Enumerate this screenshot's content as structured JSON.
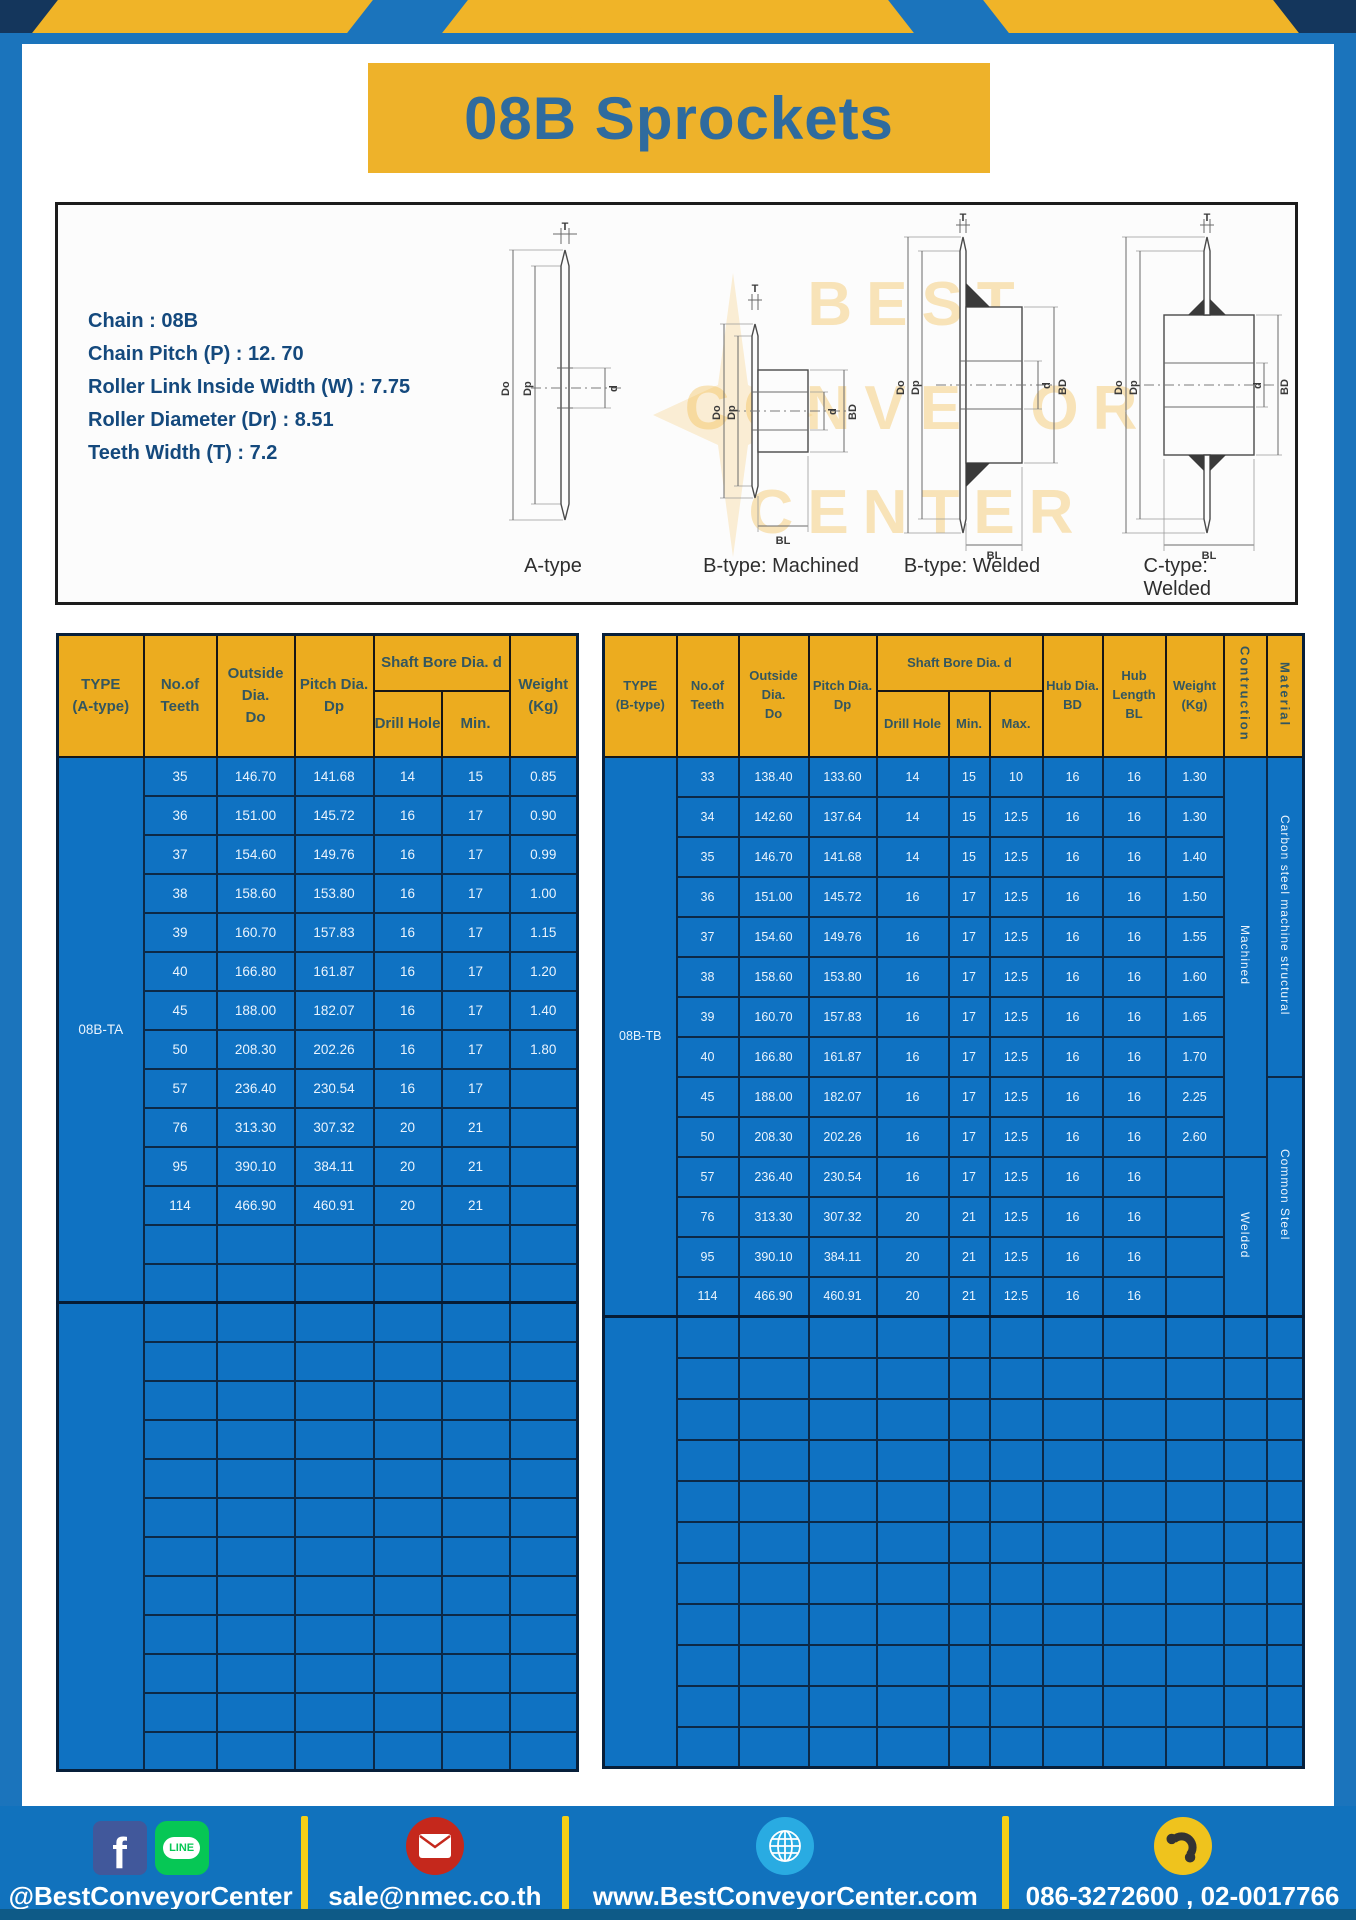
{
  "title": "08B Sprockets",
  "specs": [
    "Chain  : 08B",
    "Chain Pitch (P)  :  12. 70",
    "Roller Link Inside Width (W)  :  7.75",
    "Roller Diameter (Dr)  : 8.51",
    "Teeth Width (T)  :  7.2"
  ],
  "diagram": {
    "types": [
      "A-type",
      "B-type: Machined",
      "B-type: Welded",
      "C-type: Welded"
    ],
    "labels": {
      "T": "T",
      "Do": "Do",
      "Dp": "Dp",
      "d": "d",
      "BD": "BD",
      "BL": "BL"
    },
    "watermark": [
      "BEST",
      "CONVEYOR",
      "CENTER"
    ]
  },
  "left_table": {
    "headers": {
      "type1": "TYPE",
      "type2": "(A-type)",
      "teeth1": "No.of",
      "teeth2": "Teeth",
      "outside1": "Outside",
      "outside2": "Dia.",
      "outside3": "Do",
      "pitch1": "Pitch Dia.",
      "pitch2": "Dp",
      "shaft": "Shaft Bore Dia. d",
      "drill": "Drill Hole",
      "min": "Min.",
      "weight1": "Weight",
      "weight2": "(Kg)"
    },
    "type_label": "08B-TA",
    "rows": [
      [
        "35",
        "146.70",
        "141.68",
        "14",
        "15",
        "0.85"
      ],
      [
        "36",
        "151.00",
        "145.72",
        "16",
        "17",
        "0.90"
      ],
      [
        "37",
        "154.60",
        "149.76",
        "16",
        "17",
        "0.99"
      ],
      [
        "38",
        "158.60",
        "153.80",
        "16",
        "17",
        "1.00"
      ],
      [
        "39",
        "160.70",
        "157.83",
        "16",
        "17",
        "1.15"
      ],
      [
        "40",
        "166.80",
        "161.87",
        "16",
        "17",
        "1.20"
      ],
      [
        "45",
        "188.00",
        "182.07",
        "16",
        "17",
        "1.40"
      ],
      [
        "50",
        "208.30",
        "202.26",
        "16",
        "17",
        "1.80"
      ],
      [
        "57",
        "236.40",
        "230.54",
        "16",
        "17",
        ""
      ],
      [
        "76",
        "313.30",
        "307.32",
        "20",
        "21",
        ""
      ],
      [
        "95",
        "390.10",
        "384.11",
        "20",
        "21",
        ""
      ],
      [
        "114",
        "466.90",
        "460.91",
        "20",
        "21",
        ""
      ]
    ],
    "empty_rows_group1": 2,
    "empty_rows_group2": 12
  },
  "right_table": {
    "headers": {
      "type1": "TYPE",
      "type2": "(B-type)",
      "teeth1": "No.of",
      "teeth2": "Teeth",
      "outside1": "Outside",
      "outside2": "Dia.",
      "outside3": "Do",
      "pitch1": "Pitch Dia.",
      "pitch2": "Dp",
      "shaft": "Shaft Bore Dia. d",
      "drill": "Drill Hole",
      "min": "Min.",
      "max": "Max.",
      "hub1": "Hub Dia.",
      "hub2": "BD",
      "hublen1": "Hub",
      "hublen2": "Length",
      "hublen3": "BL",
      "weight1": "Weight",
      "weight2": "(Kg)",
      "construction": "Contruction",
      "material": "Material"
    },
    "type_label": "08B-TB",
    "rows": [
      [
        "33",
        "138.40",
        "133.60",
        "14",
        "15",
        "10",
        "16",
        "16",
        "1.30"
      ],
      [
        "34",
        "142.60",
        "137.64",
        "14",
        "15",
        "12.5",
        "16",
        "16",
        "1.30"
      ],
      [
        "35",
        "146.70",
        "141.68",
        "14",
        "15",
        "12.5",
        "16",
        "16",
        "1.40"
      ],
      [
        "36",
        "151.00",
        "145.72",
        "16",
        "17",
        "12.5",
        "16",
        "16",
        "1.50"
      ],
      [
        "37",
        "154.60",
        "149.76",
        "16",
        "17",
        "12.5",
        "16",
        "16",
        "1.55"
      ],
      [
        "38",
        "158.60",
        "153.80",
        "16",
        "17",
        "12.5",
        "16",
        "16",
        "1.60"
      ],
      [
        "39",
        "160.70",
        "157.83",
        "16",
        "17",
        "12.5",
        "16",
        "16",
        "1.65"
      ],
      [
        "40",
        "166.80",
        "161.87",
        "16",
        "17",
        "12.5",
        "16",
        "16",
        "1.70"
      ],
      [
        "45",
        "188.00",
        "182.07",
        "16",
        "17",
        "12.5",
        "16",
        "16",
        "2.25"
      ],
      [
        "50",
        "208.30",
        "202.26",
        "16",
        "17",
        "12.5",
        "16",
        "16",
        "2.60"
      ],
      [
        "57",
        "236.40",
        "230.54",
        "16",
        "17",
        "12.5",
        "16",
        "16",
        ""
      ],
      [
        "76",
        "313.30",
        "307.32",
        "20",
        "21",
        "12.5",
        "16",
        "16",
        ""
      ],
      [
        "95",
        "390.10",
        "384.11",
        "20",
        "21",
        "12.5",
        "16",
        "16",
        ""
      ],
      [
        "114",
        "466.90",
        "460.91",
        "20",
        "21",
        "12.5",
        "16",
        "16",
        ""
      ]
    ],
    "construction_groups": [
      {
        "label": "Machined",
        "span": 10
      },
      {
        "label": "Welded",
        "span": 4
      }
    ],
    "material_groups": [
      {
        "label": "Carbon steel  machine structural",
        "span": 8
      },
      {
        "label": "Common  Steel",
        "span": 6
      }
    ],
    "empty_rows_group2": 11
  },
  "footer": {
    "fb": "f",
    "line": "LINE",
    "social": "@BestConveyorCenter",
    "email": "sale@nmec.co.th",
    "website": "www.BestConveyorCenter.com",
    "phone": "086-3272600 , 02-0017766"
  },
  "colors": {
    "frame_blue": "#1b74bc",
    "accent_yellow": "#eeb22a",
    "table_blue": "#0f72c2",
    "grid_navy": "#0c2947",
    "header_text": "#33565f",
    "title_text": "#2f6b9e",
    "spec_text": "#14497d",
    "separator_yellow": "#f4cf16"
  }
}
